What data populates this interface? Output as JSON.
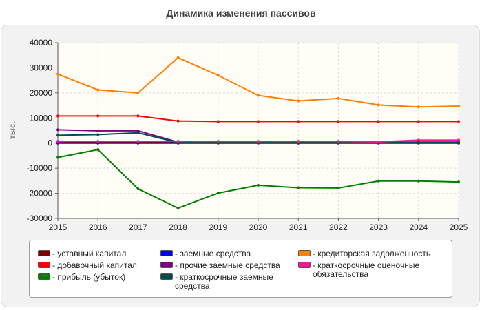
{
  "chart_data": {
    "type": "line",
    "title": "Динамика изменения пассивов",
    "ylabel": "тыс.",
    "xlabel": "",
    "x": [
      2015,
      2016,
      2017,
      2018,
      2019,
      2020,
      2021,
      2022,
      2023,
      2024,
      2025
    ],
    "ylim": [
      -30000,
      40000
    ],
    "yticks": [
      40000,
      30000,
      20000,
      10000,
      0,
      -10000,
      -20000,
      -30000
    ],
    "grid": true,
    "legend_position": "bottom",
    "series": [
      {
        "name": "уставный капитал",
        "color": "#800000",
        "values": [
          200,
          200,
          200,
          200,
          200,
          200,
          200,
          200,
          200,
          200,
          200
        ]
      },
      {
        "name": "добавочный капитал",
        "color": "#ff0000",
        "values": [
          10800,
          10800,
          10800,
          8800,
          8600,
          8600,
          8600,
          8600,
          8600,
          8600,
          8600
        ]
      },
      {
        "name": "прибыль (убыток)",
        "color": "#008000",
        "values": [
          -5700,
          -2600,
          -18200,
          -25900,
          -19900,
          -16800,
          -17800,
          -17900,
          -15100,
          -15100,
          -15500
        ]
      },
      {
        "name": "заемные средства",
        "color": "#0000ff",
        "values": [
          0,
          0,
          0,
          0,
          0,
          0,
          0,
          0,
          0,
          0,
          0
        ]
      },
      {
        "name": "прочие заемные средства",
        "color": "#800080",
        "values": [
          5300,
          4900,
          4900,
          400,
          400,
          400,
          400,
          400,
          400,
          400,
          400
        ]
      },
      {
        "name": "краткосрочные заемные средства",
        "color": "#004d4d",
        "values": [
          3100,
          3400,
          4100,
          200,
          200,
          200,
          200,
          200,
          200,
          200,
          200
        ]
      },
      {
        "name": "кредиторская задолженность",
        "color": "#ff8000",
        "values": [
          27500,
          21200,
          20000,
          34000,
          27000,
          19000,
          16800,
          17800,
          15200,
          14400,
          14700
        ]
      },
      {
        "name": "краткосрочные оценочные обязательства",
        "color": "#ff1493",
        "values": [
          700,
          700,
          700,
          700,
          700,
          700,
          700,
          700,
          500,
          1200,
          1200
        ]
      }
    ]
  }
}
